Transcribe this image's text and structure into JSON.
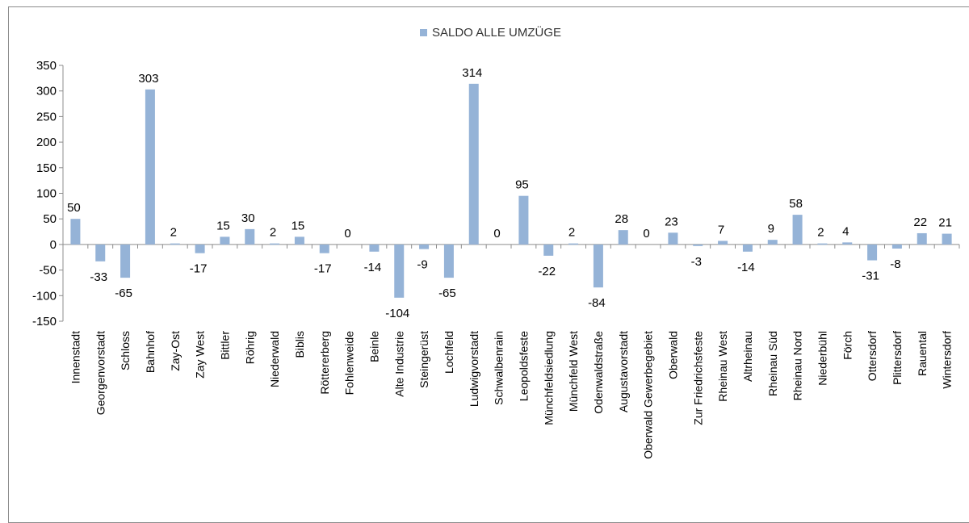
{
  "chart_data": {
    "type": "bar",
    "title": "",
    "xlabel": "",
    "ylabel": "",
    "legend_position": "top-center",
    "grid": false,
    "ylim": [
      -150,
      350
    ],
    "yticks": [
      350,
      300,
      250,
      200,
      150,
      100,
      50,
      0,
      -50,
      -100,
      -150
    ],
    "categories": [
      "Innenstadt",
      "Georgenvorstadt",
      "Schloss",
      "Bahnhof",
      "Zay-Ost",
      "Zay West",
      "Bittler",
      "Röhrig",
      "Niederwald",
      "Biblis",
      "Röttererberg",
      "Fohlenweide",
      "Beinle",
      "Alte Industrie",
      "Steingerüst",
      "Lochfeld",
      "Ludwigvorstadt",
      "Schwalbenrain",
      "Leopoldsfeste",
      "Münchfeldsiedlung",
      "Münchfeld West",
      "Odenwaldstraße",
      "Augustavorstadt",
      "Oberwald Gewerbegebiet",
      "Oberwald",
      "Zur Friedrichsfeste",
      "Rheinau West",
      "Altrheinau",
      "Rheinau Süd",
      "Rheinau Nord",
      "Niederbühl",
      "Förch",
      "Ottersdorf",
      "Plittersdorf",
      "Rauental",
      "Wintersdorf"
    ],
    "series": [
      {
        "name": "SALDO ALLE UMZÜGE",
        "color": "#95b3d7",
        "values": [
          50,
          -33,
          -65,
          303,
          2,
          -17,
          15,
          30,
          2,
          15,
          -17,
          0,
          -14,
          -104,
          -9,
          -65,
          314,
          0,
          95,
          -22,
          2,
          -84,
          28,
          0,
          23,
          -3,
          7,
          -14,
          9,
          58,
          2,
          4,
          -31,
          -8,
          22,
          21
        ]
      }
    ]
  }
}
